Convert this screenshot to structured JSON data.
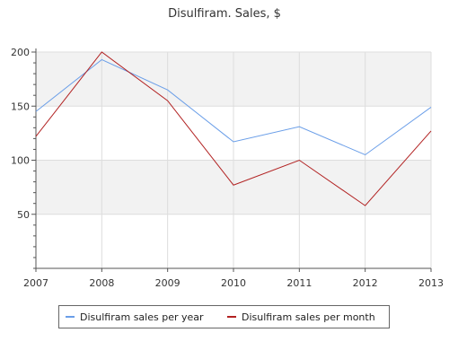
{
  "chart_data": {
    "type": "line",
    "title": "Disulfiram. Sales, $",
    "xlabel": "",
    "ylabel": "",
    "x": [
      "2007",
      "2008",
      "2009",
      "2010",
      "2011",
      "2012",
      "2013"
    ],
    "ylim": [
      0,
      200
    ],
    "yticks": [
      50,
      100,
      150,
      200
    ],
    "grid": true,
    "legend_position": "bottom",
    "series": [
      {
        "name": "Disulfiram sales per year",
        "color": "#6a9ee8",
        "values": [
          145,
          193,
          165,
          117,
          131,
          105,
          149
        ]
      },
      {
        "name": "Disulfiram sales per month",
        "color": "#b22222",
        "values": [
          122,
          200,
          155,
          77,
          100,
          58,
          127
        ]
      }
    ]
  }
}
